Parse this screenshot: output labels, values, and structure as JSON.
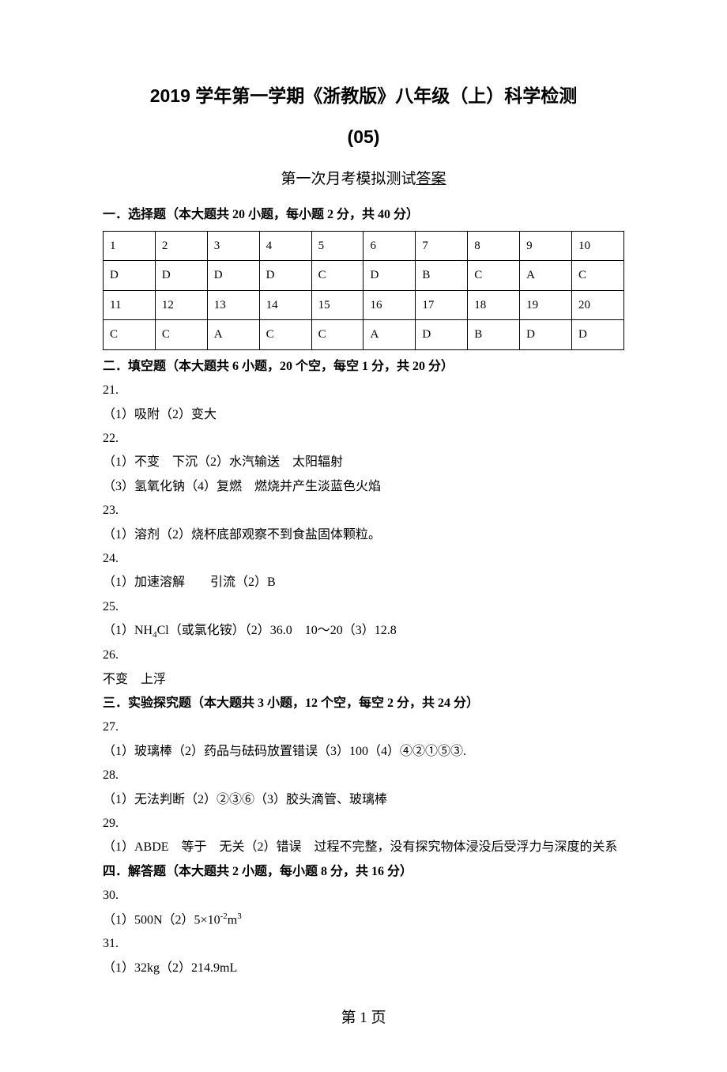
{
  "title": {
    "main": "2019 学年第一学期《浙教版》八年级（上）科学检测",
    "number": "(05)",
    "subtitle_prefix": "第一次月考模拟测试",
    "subtitle_underline": "答案"
  },
  "section1": {
    "header": "一．选择题（本大题共 20 小题，每小题 2 分，共 40 分）",
    "table": {
      "row1": [
        "1",
        "2",
        "3",
        "4",
        "5",
        "6",
        "7",
        "8",
        "9",
        "10"
      ],
      "row2": [
        "D",
        "D",
        "D",
        "D",
        "C",
        "D",
        "B",
        "C",
        "A",
        "C"
      ],
      "row3": [
        "11",
        "12",
        "13",
        "14",
        "15",
        "16",
        "17",
        "18",
        "19",
        "20"
      ],
      "row4": [
        "C",
        "C",
        "A",
        "C",
        "C",
        "A",
        "D",
        "B",
        "D",
        "D"
      ]
    }
  },
  "section2": {
    "header": "二．填空题（本大题共 6 小题，20 个空，每空 1 分，共 20 分）",
    "q21": {
      "num": "21.",
      "a": "（1）吸附（2）变大"
    },
    "q22": {
      "num": "22.",
      "a1": "（1）不变　下沉（2）水汽输送　太阳辐射",
      "a2": "（3）氢氧化钠（4）复燃　燃烧并产生淡蓝色火焰"
    },
    "q23": {
      "num": "23.",
      "a": "（1）溶剂（2）烧杯底部观察不到食盐固体颗粒。"
    },
    "q24": {
      "num": "24.",
      "a": "（1）加速溶解　　引流（2）B"
    },
    "q25": {
      "num": "25.",
      "a_prefix": "（1）NH",
      "a_sub": "4",
      "a_suffix": "Cl（或氯化铵）（2）36.0　10～20（3）12.8"
    },
    "q26": {
      "num": "26.",
      "a": "不变　上浮"
    }
  },
  "section3": {
    "header": "三．实验探究题（本大题共 3 小题，12 个空，每空 2 分，共 24 分）",
    "q27": {
      "num": "27.",
      "a": "（1）玻璃棒（2）药品与砝码放置错误（3）100（4）④②①⑤③."
    },
    "q28": {
      "num": "28.",
      "a": "（1）无法判断（2）②③⑥（3）胶头滴管、玻璃棒"
    },
    "q29": {
      "num": "29.",
      "a": "（1）ABDE　等于　无关（2）错误　过程不完整，没有探究物体浸没后受浮力与深度的关系"
    }
  },
  "section4": {
    "header": "四．解答题（本大题共 2 小题，每小题 8 分，共 16 分）",
    "q30": {
      "num": "30.",
      "a_prefix": "（1）500N（2）5×10",
      "a_sup": "-2",
      "a_suffix1": "m",
      "a_sup2": "3"
    },
    "q31": {
      "num": "31.",
      "a": "（1）32kg（2）214.9mL"
    }
  },
  "pageNumber": "第 1 页"
}
